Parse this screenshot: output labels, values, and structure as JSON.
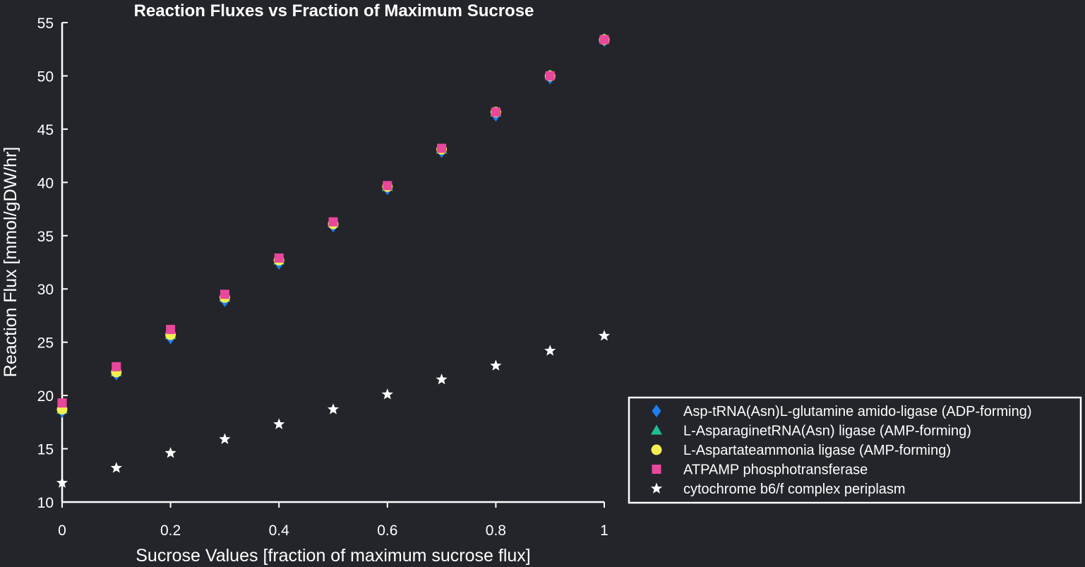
{
  "chart_data": {
    "type": "scatter",
    "title": "Reaction Fluxes vs Fraction of Maximum Sucrose",
    "xlabel": "Sucrose Values [fraction of maximum sucrose flux]",
    "ylabel": "Reaction Flux [mmol/gDW/hr]",
    "xlim": [
      0,
      1
    ],
    "ylim": [
      10,
      55
    ],
    "x_ticks": [
      "0",
      "0.2",
      "0.4",
      "0.6",
      "0.8",
      "1"
    ],
    "y_ticks": [
      "10",
      "15",
      "20",
      "25",
      "30",
      "35",
      "40",
      "45",
      "50",
      "55"
    ],
    "grid": false,
    "legend_position": "bottom-right",
    "x": [
      0,
      0.1,
      0.2,
      0.3,
      0.4,
      0.5,
      0.6,
      0.7,
      0.8,
      0.9,
      1.0
    ],
    "series": [
      {
        "name": "Asp-tRNA(Asn)L-glutamine amido-ligase (ADP-forming)",
        "marker": "diamond",
        "color": "#1f7ff0",
        "values": [
          18.5,
          22.0,
          25.4,
          28.9,
          32.4,
          35.9,
          39.4,
          42.9,
          46.3,
          49.8,
          53.3
        ]
      },
      {
        "name": "L-AsparaginetRNA(Asn) ligase (AMP-forming)",
        "marker": "triangle",
        "color": "#1fbf96",
        "values": [
          18.7,
          22.2,
          25.7,
          29.2,
          32.7,
          36.2,
          39.6,
          43.1,
          46.6,
          50.1,
          53.5
        ]
      },
      {
        "name": "L-Aspartateammonia ligase (AMP-forming)",
        "marker": "circle",
        "color": "#f5ef52",
        "values": [
          18.7,
          22.2,
          25.7,
          29.2,
          32.7,
          36.1,
          39.6,
          43.1,
          46.6,
          50.0,
          53.4
        ]
      },
      {
        "name": "ATPAMP phosphotransferase",
        "marker": "square",
        "color": "#e8479c",
        "values": [
          19.3,
          22.7,
          26.2,
          29.5,
          32.9,
          36.3,
          39.7,
          43.2,
          46.6,
          50.0,
          53.4
        ]
      },
      {
        "name": "cytochrome b6/f complex periplasm",
        "marker": "star",
        "color": "#ffffff",
        "values": [
          11.8,
          13.2,
          14.6,
          15.9,
          17.3,
          18.7,
          20.1,
          21.5,
          22.8,
          24.2,
          25.6
        ]
      }
    ]
  }
}
